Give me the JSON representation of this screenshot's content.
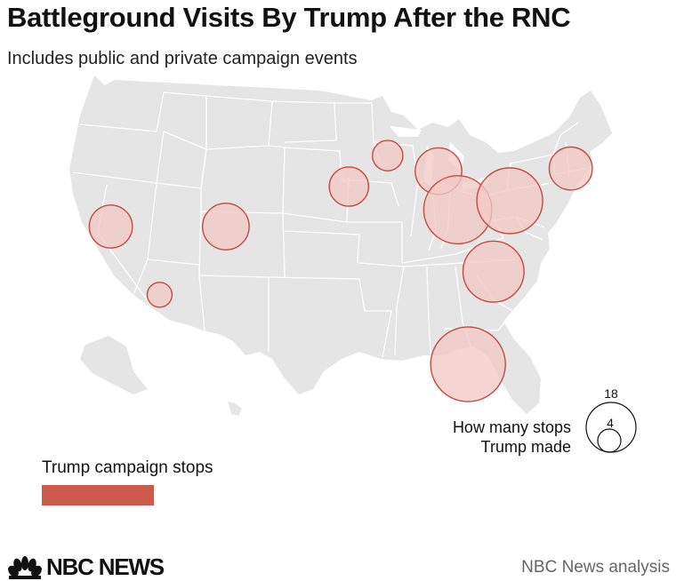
{
  "header": {
    "title": "Battleground Visits By Trump After the RNC",
    "subtitle": "Includes public and private campaign events"
  },
  "colors": {
    "land": "#e5e5e5",
    "state_border": "#ffffff",
    "bubble_fill": "#f2c9c5",
    "bubble_stroke": "#c9493d",
    "legend_swatch": "#cc5a4c"
  },
  "chart_data": {
    "type": "bubble-map",
    "region": "United States",
    "size_legend": {
      "label_line1": "How many stops",
      "label_line2": "Trump made",
      "large_value": "18",
      "small_value": "4"
    },
    "color_legend": {
      "label": "Trump campaign stops"
    },
    "points": [
      {
        "state": "Nevada",
        "lon": -116.8,
        "lat": 38.9,
        "stops": 6
      },
      {
        "state": "Arizona",
        "lon": -112.0,
        "lat": 33.6,
        "stops": 2
      },
      {
        "state": "Colorado",
        "lon": -105.5,
        "lat": 38.9,
        "stops": 7
      },
      {
        "state": "Iowa",
        "lon": -93.4,
        "lat": 42.0,
        "stops": 5
      },
      {
        "state": "Wisconsin",
        "lon": -89.6,
        "lat": 44.4,
        "stops": 3
      },
      {
        "state": "Michigan",
        "lon": -84.6,
        "lat": 43.2,
        "stops": 7
      },
      {
        "state": "Ohio",
        "lon": -82.7,
        "lat": 40.2,
        "stops": 15
      },
      {
        "state": "Pennsylvania",
        "lon": -77.6,
        "lat": 40.9,
        "stops": 14
      },
      {
        "state": "New Hampshire",
        "lon": -71.6,
        "lat": 43.4,
        "stops": 6
      },
      {
        "state": "North Carolina",
        "lon": -79.2,
        "lat": 35.4,
        "stops": 12
      },
      {
        "state": "Florida",
        "lon": -81.7,
        "lat": 28.2,
        "stops": 18
      }
    ]
  },
  "footer": {
    "brand": "NBC NEWS",
    "source": "NBC News analysis"
  }
}
